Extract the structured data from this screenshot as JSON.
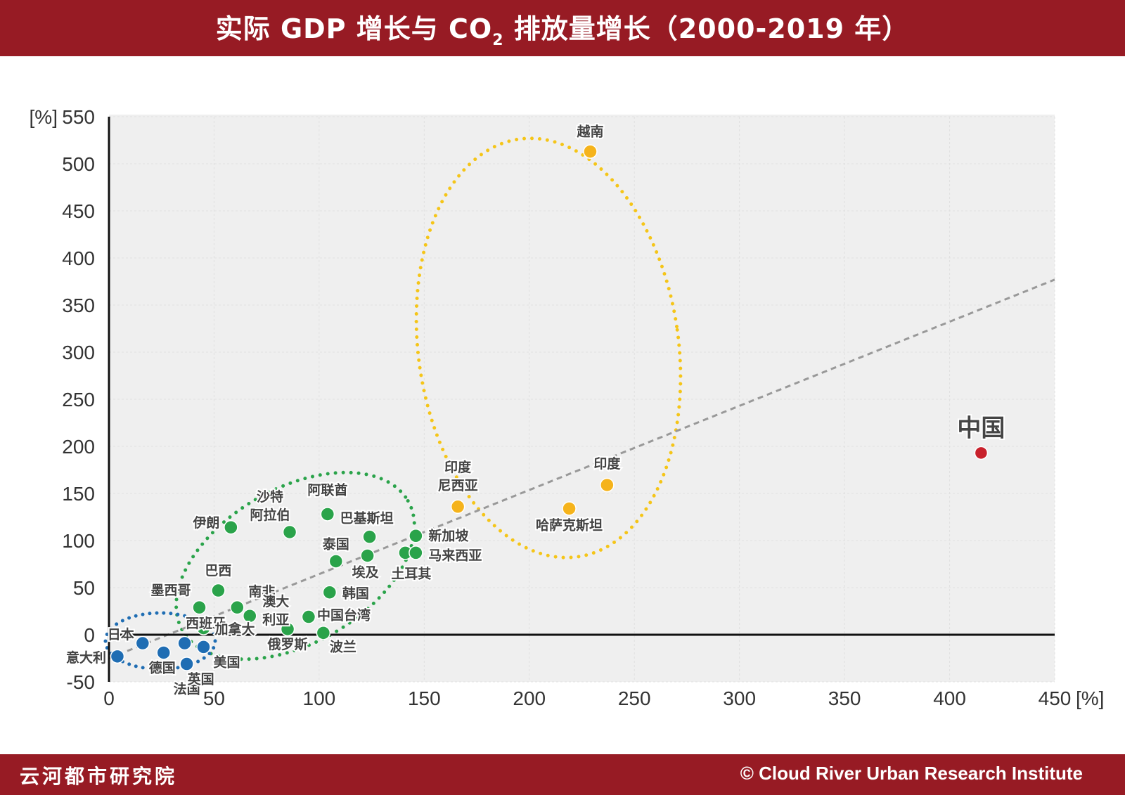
{
  "header": {
    "title_pre": "实际 GDP 增长与 CO",
    "title_sub": "2",
    "title_post": " 排放量增长（2000-2019 年）"
  },
  "footer": {
    "org": "云河都市研究院",
    "copyright": "© Cloud River Urban Research Institute"
  },
  "colors": {
    "brand": "#971b24",
    "developed": "#1f6db3",
    "emerging": "#2aa34a",
    "rapid": "#f5b31b",
    "china": "#c8202b",
    "plot_bg": "#efefef"
  },
  "chart_data": {
    "type": "scatter",
    "title": "实际 GDP 增长与 CO2 排放量增长（2000-2019 年）",
    "xlabel": "[%]",
    "ylabel": "[%]",
    "xlim": [
      0,
      450
    ],
    "ylim": [
      -50,
      550
    ],
    "xticks": [
      "0",
      "50",
      "100",
      "150",
      "200",
      "250",
      "300",
      "350",
      "400",
      "450"
    ],
    "yticks": [
      "-50",
      "0",
      "50",
      "100",
      "150",
      "200",
      "250",
      "300",
      "350",
      "400",
      "450",
      "500",
      "550"
    ],
    "x_unit_label": "[%]",
    "y_unit_label": "[%]",
    "grid": true,
    "trendline": {
      "from": [
        0,
        -25
      ],
      "to": [
        450,
        377
      ],
      "style": "dashed"
    },
    "series": [
      {
        "name": "developed",
        "color": "#1f6db3",
        "points": [
          {
            "label": "日本",
            "x": 16,
            "y": -9
          },
          {
            "label": "意大利",
            "x": 4,
            "y": -23
          },
          {
            "label": "德国",
            "x": 26,
            "y": -19
          },
          {
            "label": "西班牙",
            "x": 36,
            "y": -9
          },
          {
            "label": "法国",
            "x": 37,
            "y": -31
          },
          {
            "label": "美国",
            "x": 45,
            "y": -13
          },
          {
            "label": "英国",
            "x": 37,
            "y": -31
          }
        ]
      },
      {
        "name": "emerging",
        "color": "#2aa34a",
        "points": [
          {
            "label": "加拿大",
            "x": 45,
            "y": 7
          },
          {
            "label": "墨西哥",
            "x": 43,
            "y": 29
          },
          {
            "label": "巴西",
            "x": 52,
            "y": 47
          },
          {
            "label": "南非",
            "x": 61,
            "y": 29
          },
          {
            "label": "澳大利亚",
            "x": 67,
            "y": 20
          },
          {
            "label": "伊朗",
            "x": 58,
            "y": 114
          },
          {
            "label": "沙特阿拉伯",
            "x": 86,
            "y": 109
          },
          {
            "label": "俄罗斯",
            "x": 85,
            "y": 6
          },
          {
            "label": "中国台湾",
            "x": 95,
            "y": 19
          },
          {
            "label": "波兰",
            "x": 102,
            "y": 2
          },
          {
            "label": "韩国",
            "x": 105,
            "y": 45
          },
          {
            "label": "泰国",
            "x": 108,
            "y": 78
          },
          {
            "label": "阿联酋",
            "x": 104,
            "y": 128
          },
          {
            "label": "巴基斯坦",
            "x": 124,
            "y": 104
          },
          {
            "label": "埃及",
            "x": 123,
            "y": 84
          },
          {
            "label": "土耳其",
            "x": 141,
            "y": 87
          },
          {
            "label": "马来西亚",
            "x": 146,
            "y": 87
          },
          {
            "label": "新加坡",
            "x": 146,
            "y": 105
          }
        ]
      },
      {
        "name": "rapid",
        "color": "#f5b31b",
        "points": [
          {
            "label": "越南",
            "x": 229,
            "y": 513
          },
          {
            "label": "印度尼西亚",
            "x": 166,
            "y": 136
          },
          {
            "label": "哈萨克斯坦",
            "x": 219,
            "y": 134
          },
          {
            "label": "印度",
            "x": 237,
            "y": 159
          }
        ]
      },
      {
        "name": "china",
        "color": "#c8202b",
        "points": [
          {
            "label": "中国",
            "x": 415,
            "y": 193
          }
        ]
      }
    ]
  }
}
